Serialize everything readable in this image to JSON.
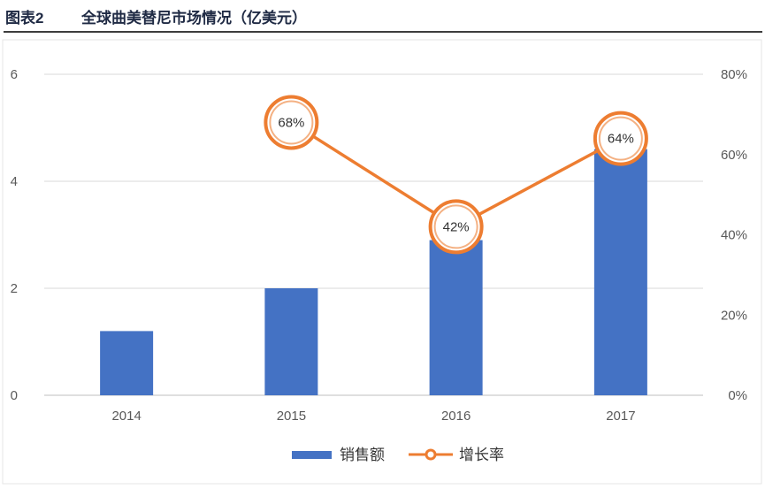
{
  "header": {
    "figure_label": "图表2",
    "title": "全球曲美替尼市场情况（亿美元）"
  },
  "colors": {
    "bar": "#4472c4",
    "line": "#ed7d31",
    "grid": "#d9d9d9",
    "axis_text": "#595959"
  },
  "chart_data": {
    "type": "bar",
    "categories": [
      "2014",
      "2015",
      "2016",
      "2017"
    ],
    "series": [
      {
        "name": "销售额",
        "type": "bar",
        "axis": "left",
        "values": [
          1.2,
          2.0,
          2.9,
          4.6
        ]
      },
      {
        "name": "增长率",
        "type": "line",
        "axis": "right",
        "values": [
          null,
          0.68,
          0.42,
          0.64
        ],
        "labels": [
          "",
          "68%",
          "42%",
          "64%"
        ]
      }
    ],
    "ylim": [
      0,
      6
    ],
    "yticks": [
      "0",
      "2",
      "4",
      "6"
    ],
    "y2lim": [
      0,
      0.8
    ],
    "y2ticks": [
      "0%",
      "20%",
      "40%",
      "60%",
      "80%"
    ],
    "grid": true,
    "legend": "bottom-center"
  }
}
